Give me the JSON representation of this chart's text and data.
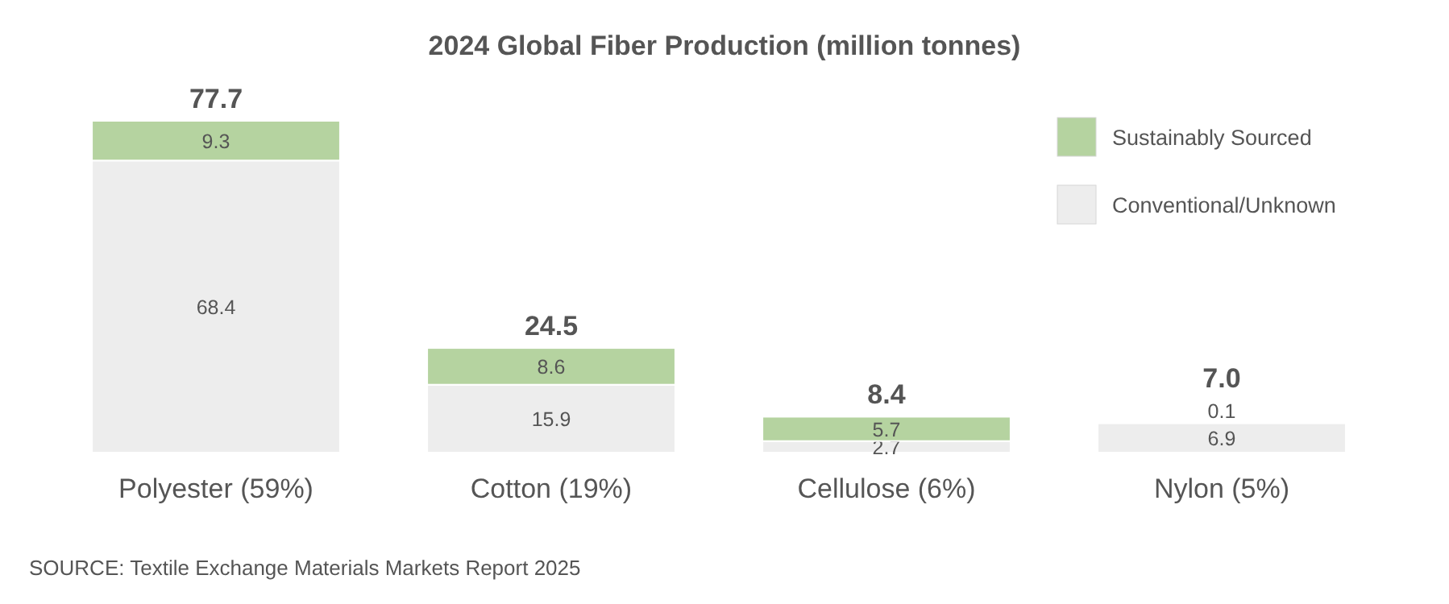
{
  "chart_data": {
    "type": "bar",
    "title": "2024 Global Fiber Production (million tonnes)",
    "categories": [
      "Polyester (59%)",
      "Cotton (19%)",
      "Cellulose (6%)",
      "Nylon (5%)"
    ],
    "stacked": true,
    "data_labels": true,
    "totals": [
      "77.7",
      "24.5",
      "8.4",
      "7.0"
    ],
    "legend": "top right",
    "series": [
      {
        "name": "Conventional/Unknown",
        "color": "#ededed",
        "values": [
          68.4,
          15.9,
          2.7,
          6.9
        ]
      },
      {
        "name": "Sustainably Sourced",
        "color": "#b5d3a0",
        "values": [
          9.3,
          8.6,
          5.7,
          0.1
        ]
      }
    ],
    "annotations": [
      "SOURCE: Textile Exchange Materials Markets Report 2025"
    ]
  }
}
